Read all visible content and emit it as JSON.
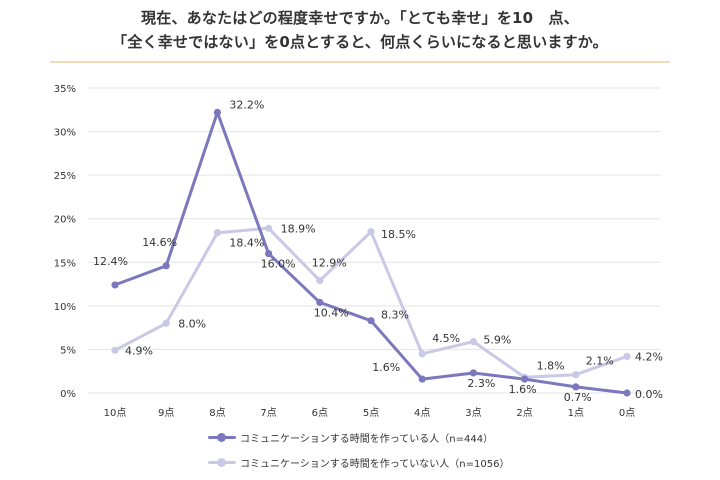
{
  "title": {
    "line1": "現在、あなたはどの程度幸せですか。「とても幸せ」を10　点、",
    "line2": "「全く幸せではない」を0点とすると、何点くらいになると思いますか。"
  },
  "colors": {
    "series1": "#7b78bd",
    "series2": "#c9c8e6",
    "grid": "#e3e3e3",
    "title_rule": "#f6d9b8"
  },
  "chart_data": {
    "type": "line",
    "categories": [
      "10点",
      "9点",
      "8点",
      "7点",
      "6点",
      "5点",
      "4点",
      "3点",
      "2点",
      "1点",
      "0点"
    ],
    "ylim": [
      0,
      35
    ],
    "yticks": [
      "0%",
      "5%",
      "10%",
      "15%",
      "20%",
      "25%",
      "30%",
      "35%"
    ],
    "grid": true,
    "legend_position": "bottom",
    "series": [
      {
        "name": "コミュニケーションする時間を作っている人（n=444）",
        "values": [
          12.4,
          14.6,
          32.2,
          16.0,
          10.4,
          8.3,
          1.6,
          2.3,
          1.6,
          0.7,
          0.0
        ],
        "labels": [
          "12.4%",
          "14.6%",
          "32.2%",
          "16.0%",
          "10.4%",
          "8.3%",
          "1.6%",
          "2.3%",
          "1.6%",
          "0.7%",
          "0.0%"
        ]
      },
      {
        "name": "コミュニケーションする時間を作っていない人（n=1056）",
        "values": [
          4.9,
          8.0,
          18.4,
          18.9,
          12.9,
          18.5,
          4.5,
          5.9,
          1.8,
          2.1,
          4.2
        ],
        "labels": [
          "4.9%",
          "8.0%",
          "18.4%",
          "18.9%",
          "12.9%",
          "18.5%",
          "4.5%",
          "5.9%",
          "1.8%",
          "2.1%",
          "4.2%"
        ]
      }
    ]
  }
}
